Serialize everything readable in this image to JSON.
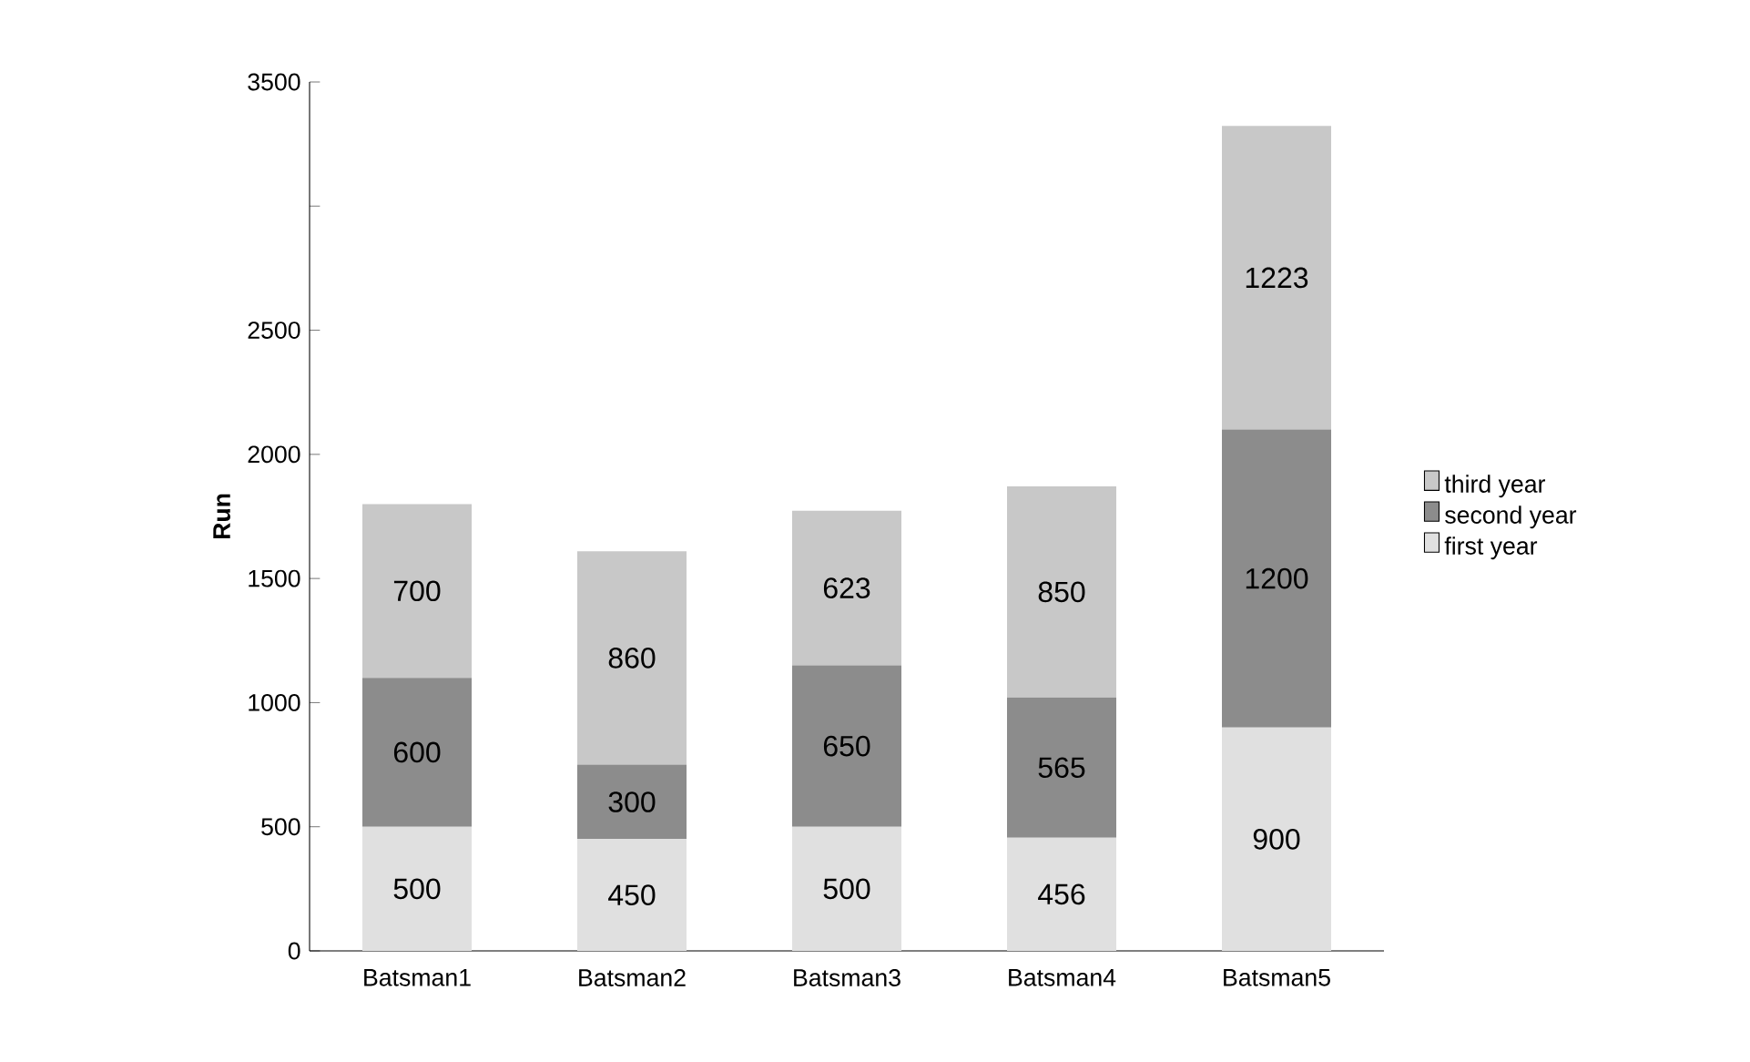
{
  "chart_data": {
    "type": "bar",
    "stacked": true,
    "ylabel": "Run",
    "categories": [
      "Batsman1",
      "Batsman2",
      "Batsman3",
      "Batsman4",
      "Batsman5"
    ],
    "series": [
      {
        "name": "first year",
        "color": "#e0e0e0",
        "values": [
          500,
          450,
          500,
          456,
          900
        ]
      },
      {
        "name": "second year",
        "color": "#8c8c8c",
        "values": [
          600,
          300,
          650,
          565,
          1200
        ]
      },
      {
        "name": "third year",
        "color": "#c8c8c8",
        "values": [
          700,
          860,
          623,
          850,
          1223
        ]
      }
    ],
    "ylim": [
      0,
      3500
    ],
    "yticks": [
      0,
      500,
      1000,
      1500,
      2000,
      2500,
      {
        "value": 3000,
        "label": null
      },
      3500
    ],
    "data_labels": true,
    "legend": "right",
    "grid": false
  }
}
